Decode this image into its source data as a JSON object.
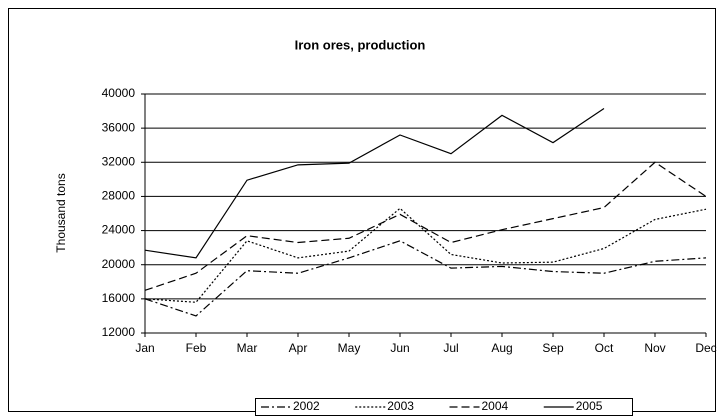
{
  "chart_data": {
    "type": "line",
    "title": "Iron ores, production",
    "y_label": "Thousand tons",
    "categories": [
      "Jan",
      "Feb",
      "Mar",
      "Apr",
      "May",
      "Jun",
      "Jul",
      "Aug",
      "Sep",
      "Oct",
      "Nov",
      "Dec"
    ],
    "series": [
      {
        "name": "2002",
        "color": "#000000",
        "dash": "dashdot",
        "values": [
          16000,
          14000,
          19300,
          19000,
          20800,
          22800,
          19600,
          19800,
          19200,
          19000,
          20400,
          20800
        ]
      },
      {
        "name": "2003",
        "color": "#000000",
        "dash": "dotted",
        "values": [
          16000,
          15600,
          22800,
          20800,
          21600,
          26600,
          21200,
          20200,
          20300,
          21900,
          25300,
          26500
        ]
      },
      {
        "name": "2004",
        "color": "#000000",
        "dash": "dashed",
        "values": [
          17000,
          19000,
          23400,
          22600,
          23100,
          25900,
          22600,
          24100,
          25400,
          26700,
          32000,
          28000
        ]
      },
      {
        "name": "2005",
        "color": "#000000",
        "dash": "solid",
        "values": [
          21700,
          20800,
          29900,
          31700,
          31900,
          35200,
          33000,
          37500,
          34300,
          38300,
          null,
          null
        ]
      }
    ],
    "ylim": [
      12000,
      40000
    ],
    "yticks": [
      12000,
      16000,
      20000,
      24000,
      28000,
      32000,
      36000,
      40000
    ],
    "grid": true,
    "legend": "bottom"
  }
}
